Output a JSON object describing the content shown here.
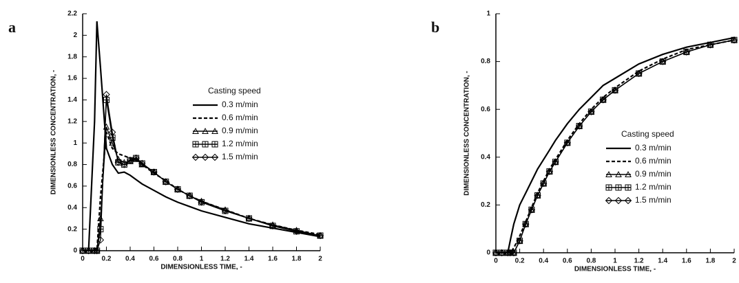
{
  "chart_data": [
    {
      "type": "line",
      "panel_label": "a",
      "x_label": "DIMENSIONLESS TIME, -",
      "y_label": "DIMENSIONLESS CONCENTRATION, -",
      "legend_title": "Casting speed",
      "xlim": [
        0,
        2
      ],
      "ylim": [
        0,
        2.2
      ],
      "xticks": [
        0,
        0.2,
        0.4,
        0.6,
        0.8,
        1,
        1.2,
        1.4,
        1.6,
        1.8,
        2
      ],
      "yticks": [
        0,
        0.2,
        0.4,
        0.6,
        0.8,
        1,
        1.2,
        1.4,
        1.6,
        1.8,
        2,
        2.2
      ],
      "x": [
        0,
        0.05,
        0.1,
        0.12,
        0.15,
        0.2,
        0.25,
        0.3,
        0.35,
        0.4,
        0.45,
        0.5,
        0.6,
        0.7,
        0.8,
        0.9,
        1,
        1.2,
        1.4,
        1.6,
        1.8,
        2
      ],
      "series": [
        {
          "name": "0.3 m/min",
          "color": "#000000",
          "style": "solid",
          "marker": "none",
          "values": [
            0,
            0,
            1.2,
            2.13,
            1.7,
            0.95,
            0.8,
            0.72,
            0.73,
            0.7,
            0.66,
            0.62,
            0.56,
            0.5,
            0.45,
            0.41,
            0.37,
            0.31,
            0.25,
            0.21,
            0.17,
            0.13
          ]
        },
        {
          "name": "0.6 m/min",
          "color": "#000000",
          "style": "dashed",
          "marker": "none",
          "values": [
            0,
            0,
            0,
            0,
            0.5,
            1.1,
            0.95,
            0.9,
            0.88,
            0.86,
            0.84,
            0.8,
            0.72,
            0.65,
            0.57,
            0.51,
            0.46,
            0.38,
            0.3,
            0.24,
            0.19,
            0.15
          ]
        },
        {
          "name": "0.9 m/min",
          "color": "#000000",
          "style": "solid",
          "marker": "triangle",
          "values": [
            0,
            0,
            0,
            0,
            0.3,
            1.15,
            1.0,
            0.85,
            0.82,
            0.83,
            0.85,
            0.8,
            0.73,
            0.64,
            0.57,
            0.51,
            0.46,
            0.38,
            0.3,
            0.24,
            0.19,
            0.14
          ]
        },
        {
          "name": "1.2 m/min",
          "color": "#000000",
          "style": "solid",
          "marker": "square-cross",
          "values": [
            0,
            0,
            0,
            0,
            0.2,
            1.4,
            1.05,
            0.82,
            0.8,
            0.84,
            0.86,
            0.81,
            0.73,
            0.64,
            0.57,
            0.51,
            0.45,
            0.37,
            0.3,
            0.23,
            0.18,
            0.14
          ]
        },
        {
          "name": "1.5 m/min",
          "color": "#000000",
          "style": "solid",
          "marker": "diamond",
          "values": [
            0,
            0,
            0,
            0,
            0.1,
            1.45,
            1.1,
            0.82,
            0.8,
            0.84,
            0.86,
            0.81,
            0.73,
            0.64,
            0.57,
            0.51,
            0.45,
            0.37,
            0.3,
            0.23,
            0.18,
            0.14
          ]
        }
      ]
    },
    {
      "type": "line",
      "panel_label": "b",
      "x_label": "DIMENSIONLESS TIME, -",
      "y_label": "DIMENSIONLESS CONCENTRATION, -",
      "legend_title": "Casting speed",
      "xlim": [
        0,
        2
      ],
      "ylim": [
        0,
        1
      ],
      "xticks": [
        0,
        0.2,
        0.4,
        0.6,
        0.8,
        1,
        1.2,
        1.4,
        1.6,
        1.8,
        2
      ],
      "yticks": [
        0,
        0.2,
        0.4,
        0.6,
        0.8,
        1
      ],
      "x": [
        0,
        0.05,
        0.1,
        0.12,
        0.15,
        0.2,
        0.25,
        0.3,
        0.35,
        0.4,
        0.45,
        0.5,
        0.6,
        0.7,
        0.8,
        0.9,
        1,
        1.2,
        1.4,
        1.6,
        1.8,
        2
      ],
      "series": [
        {
          "name": "0.3 m/min",
          "color": "#000000",
          "style": "solid",
          "marker": "none",
          "values": [
            0,
            0,
            0,
            0.05,
            0.12,
            0.2,
            0.25,
            0.3,
            0.35,
            0.39,
            0.43,
            0.47,
            0.54,
            0.6,
            0.65,
            0.7,
            0.73,
            0.79,
            0.83,
            0.86,
            0.88,
            0.9
          ]
        },
        {
          "name": "0.6 m/min",
          "color": "#000000",
          "style": "dashed",
          "marker": "none",
          "values": [
            0,
            0,
            0,
            0,
            0.02,
            0.07,
            0.13,
            0.19,
            0.25,
            0.3,
            0.35,
            0.39,
            0.47,
            0.54,
            0.6,
            0.65,
            0.69,
            0.76,
            0.81,
            0.85,
            0.87,
            0.89
          ]
        },
        {
          "name": "0.9 m/min",
          "color": "#000000",
          "style": "solid",
          "marker": "triangle",
          "values": [
            0,
            0,
            0,
            0,
            0,
            0.05,
            0.12,
            0.18,
            0.24,
            0.29,
            0.34,
            0.38,
            0.46,
            0.53,
            0.59,
            0.64,
            0.68,
            0.75,
            0.8,
            0.84,
            0.87,
            0.89
          ]
        },
        {
          "name": "1.2 m/min",
          "color": "#000000",
          "style": "solid",
          "marker": "square-cross",
          "values": [
            0,
            0,
            0,
            0,
            0,
            0.05,
            0.12,
            0.18,
            0.24,
            0.29,
            0.34,
            0.38,
            0.46,
            0.53,
            0.59,
            0.64,
            0.68,
            0.75,
            0.8,
            0.84,
            0.87,
            0.89
          ]
        },
        {
          "name": "1.5 m/min",
          "color": "#000000",
          "style": "solid",
          "marker": "diamond",
          "values": [
            0,
            0,
            0,
            0,
            0,
            0.05,
            0.12,
            0.18,
            0.24,
            0.29,
            0.34,
            0.38,
            0.46,
            0.53,
            0.59,
            0.64,
            0.68,
            0.75,
            0.8,
            0.84,
            0.87,
            0.89
          ]
        }
      ]
    }
  ]
}
